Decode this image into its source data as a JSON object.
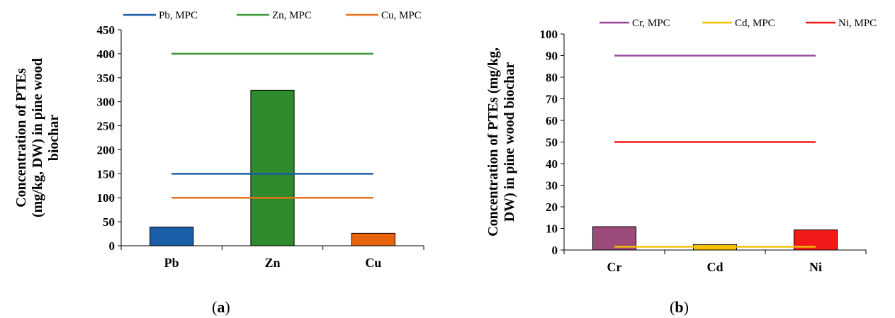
{
  "chart_data": [
    {
      "type": "bar",
      "panel_label": "a",
      "ylabel": "Concentration of PTEs (mg/kg, DW) in pine wood biochar",
      "xlabel": "",
      "categories": [
        "Pb",
        "Zn",
        "Cu"
      ],
      "values": [
        39,
        324,
        26
      ],
      "bar_colors": [
        "#1a5ea8",
        "#2e8b2e",
        "#e8640c"
      ],
      "ylim": [
        0,
        450
      ],
      "yticks": [
        0,
        50,
        100,
        150,
        200,
        250,
        300,
        350,
        400,
        450
      ],
      "reference_lines": [
        {
          "name": "Pb, MPC",
          "value": 150,
          "color": "#1a5ea8"
        },
        {
          "name": "Zn, MPC",
          "value": 400,
          "color": "#3c9a3c"
        },
        {
          "name": "Cu, MPC",
          "value": 100,
          "color": "#e8731e"
        }
      ],
      "legend_position": "top",
      "grid": false
    },
    {
      "type": "bar",
      "panel_label": "b",
      "ylabel": "Concentration of PTEs (mg/kg, DW) in pine wood biochar",
      "xlabel": "",
      "categories": [
        "Cr",
        "Cd",
        "Ni"
      ],
      "values": [
        10.8,
        2.5,
        9.3
      ],
      "bar_colors": [
        "#9b4a7a",
        "#f5c000",
        "#f51a1a"
      ],
      "ylim": [
        0,
        100
      ],
      "yticks": [
        0,
        10,
        20,
        30,
        40,
        50,
        60,
        70,
        80,
        90,
        100
      ],
      "reference_lines": [
        {
          "name": "Cr, MPC",
          "value": 90,
          "color": "#9b4a9b"
        },
        {
          "name": "Cd, MPC",
          "value": 1.5,
          "color": "#f5c000"
        },
        {
          "name": "Ni, MPC",
          "value": 50,
          "color": "#f51a1a"
        }
      ],
      "legend_position": "top",
      "grid": false
    }
  ]
}
